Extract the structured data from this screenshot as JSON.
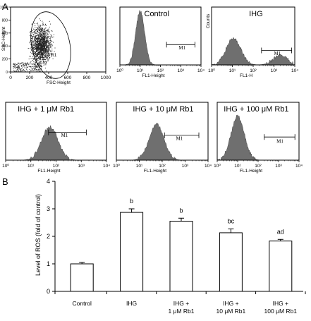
{
  "chart_data": [
    {
      "type": "scatter",
      "panel": "A",
      "xlabel": "FSC-Height",
      "ylabel": "SSC-Height",
      "xticks": [
        "0",
        "200",
        "400",
        "600",
        "800",
        "1000"
      ],
      "yticks": [
        "0",
        "200",
        "400",
        "600",
        "800",
        "1000"
      ],
      "gate_label": "R1"
    },
    {
      "type": "area",
      "panels": [
        {
          "title": "Control",
          "xlabel": "FL1-Height",
          "ylabel": "",
          "marker": "M1"
        },
        {
          "title": "IHG",
          "xlabel": "FL1-H",
          "ylabel": "Counts",
          "marker": "M1"
        },
        {
          "title": "IHG + 1 μM Rb1",
          "xlabel": "FL1-Height",
          "ylabel": "",
          "marker": "M1"
        },
        {
          "title": "IHG + 10 μM Rb1",
          "xlabel": "FL1-Height",
          "ylabel": "",
          "marker": "M1"
        },
        {
          "title": "IHG + 100 μM Rb1",
          "xlabel": "FL1-Height",
          "ylabel": "",
          "marker": "M1"
        }
      ],
      "xticks": [
        "10⁰",
        "10¹",
        "10²",
        "10³",
        "10⁴"
      ]
    },
    {
      "type": "bar",
      "panel": "B",
      "categories": [
        "Control",
        "IHG",
        "IHG +\n1 μM Rb1",
        "IHG +\n10 μM Rb1",
        "IHG +\n100 μM Rb1"
      ],
      "values": [
        1.0,
        2.87,
        2.55,
        2.13,
        1.83
      ],
      "errors": [
        0.05,
        0.13,
        0.11,
        0.14,
        0.06
      ],
      "annotations": [
        "",
        "b",
        "b",
        "bc",
        "ad"
      ],
      "ylabel": "Level of ROS (fold of control)",
      "ylim": [
        0,
        4
      ],
      "yticks": [
        0,
        1,
        2,
        3,
        4
      ],
      "bar_color": "#ffffff"
    }
  ],
  "panel_labels": {
    "a": "A",
    "b": "B"
  }
}
